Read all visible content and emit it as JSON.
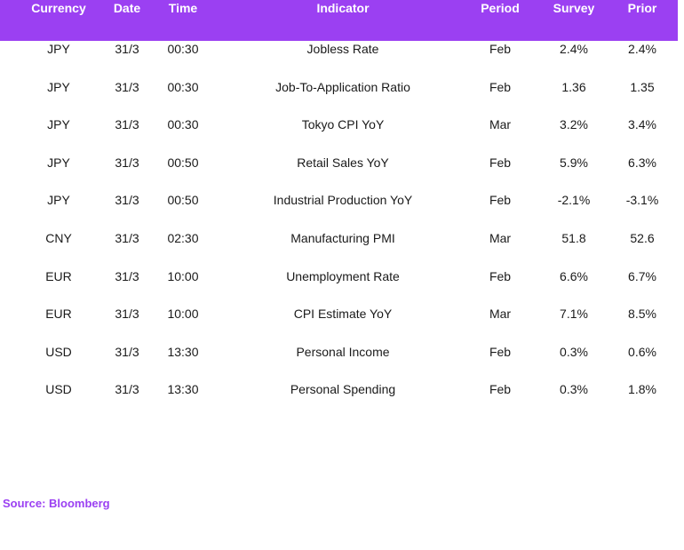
{
  "table": {
    "headers": {
      "currency": "Currency",
      "date": "Date",
      "time": "Time",
      "indicator": "Indicator",
      "period": "Period",
      "survey": "Survey",
      "prior": "Prior"
    },
    "rows": [
      {
        "currency": "JPY",
        "date": "31/3",
        "time": "00:30",
        "indicator": "Jobless Rate",
        "period": "Feb",
        "survey": "2.4%",
        "prior": "2.4%"
      },
      {
        "currency": "JPY",
        "date": "31/3",
        "time": "00:30",
        "indicator": "Job-To-Application Ratio",
        "period": "Feb",
        "survey": "1.36",
        "prior": "1.35"
      },
      {
        "currency": "JPY",
        "date": "31/3",
        "time": "00:30",
        "indicator": "Tokyo CPI YoY",
        "period": "Mar",
        "survey": "3.2%",
        "prior": "3.4%"
      },
      {
        "currency": "JPY",
        "date": "31/3",
        "time": "00:50",
        "indicator": "Retail Sales YoY",
        "period": "Feb",
        "survey": "5.9%",
        "prior": "6.3%"
      },
      {
        "currency": "JPY",
        "date": "31/3",
        "time": "00:50",
        "indicator": "Industrial Production YoY",
        "period": "Feb",
        "survey": "-2.1%",
        "prior": "-3.1%"
      },
      {
        "currency": "CNY",
        "date": "31/3",
        "time": "02:30",
        "indicator": "Manufacturing PMI",
        "period": "Mar",
        "survey": "51.8",
        "prior": "52.6"
      },
      {
        "currency": "EUR",
        "date": "31/3",
        "time": "10:00",
        "indicator": "Unemployment Rate",
        "period": "Feb",
        "survey": "6.6%",
        "prior": "6.7%"
      },
      {
        "currency": "EUR",
        "date": "31/3",
        "time": "10:00",
        "indicator": "CPI Estimate YoY",
        "period": "Mar",
        "survey": "7.1%",
        "prior": "8.5%"
      },
      {
        "currency": "USD",
        "date": "31/3",
        "time": "13:30",
        "indicator": "Personal Income",
        "period": "Feb",
        "survey": "0.3%",
        "prior": "0.6%"
      },
      {
        "currency": "USD",
        "date": "31/3",
        "time": "13:30",
        "indicator": "Personal Spending",
        "period": "Feb",
        "survey": "0.3%",
        "prior": "1.8%"
      }
    ]
  },
  "footer": {
    "source": "Source: Bloomberg"
  },
  "colors": {
    "header_bg": "#9b40f2",
    "header_text": "#ffffff",
    "source_text": "#9b40f2"
  }
}
